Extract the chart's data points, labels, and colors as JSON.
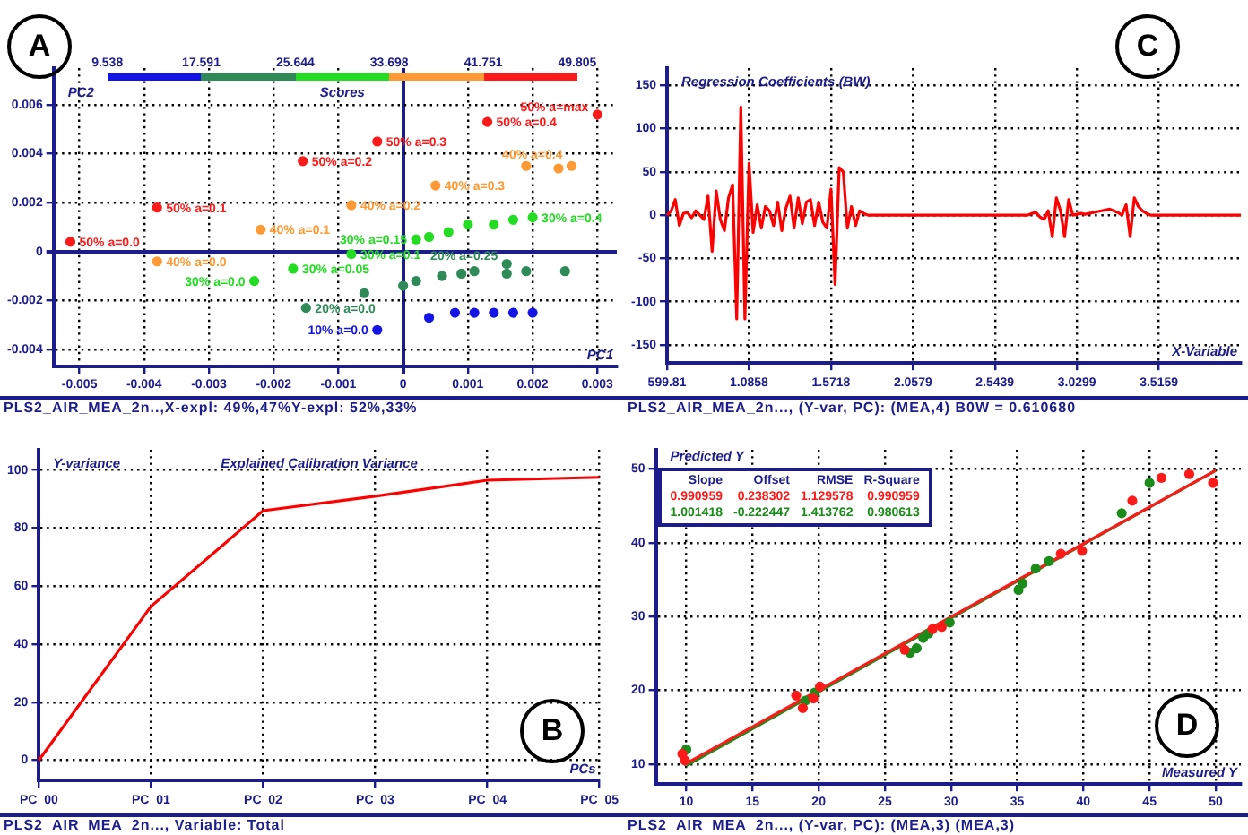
{
  "chart_data": [
    {
      "type": "scatter",
      "clabel": "Scores",
      "xlabel": "PC1",
      "ylabel": "PC2",
      "annotations": [
        "A",
        "PLS2_AIR_MEA_2n..,X-expl: 49%,47%Y-expl: 52%,33%",
        "9.538",
        "17.591",
        "25.644",
        "33.698",
        "41.751",
        "49.805",
        {
          "text": "10% a=0.0",
          "x": -0.0004,
          "y": -0.0032
        },
        {
          "text": "20% a=0.0",
          "x": -0.0015,
          "y": -0.0023
        },
        {
          "text": "20% a=0.25",
          "x": 0.0016,
          "y": -0.0005
        },
        {
          "text": "30% a=0.0",
          "x": -0.0023,
          "y": -0.0012
        },
        {
          "text": "30% a=0.05",
          "x": -0.0017,
          "y": -0.0007
        },
        {
          "text": "30% a=0.1",
          "x": -0.0008,
          "y": -0.0001
        },
        {
          "text": "30% a=0.15",
          "x": 0.0002,
          "y": 0.0005
        },
        {
          "text": "30% a=0.4",
          "x": 0.002,
          "y": 0.0014
        },
        {
          "text": "40% a=0.0",
          "x": -0.0038,
          "y": -0.0004
        },
        {
          "text": "40% a=0.1",
          "x": -0.0022,
          "y": 0.0009
        },
        {
          "text": "40% a=0.2",
          "x": -0.0008,
          "y": 0.0019
        },
        {
          "text": "40% a=0.3",
          "x": 0.0005,
          "y": 0.0027
        },
        {
          "text": "40% a=0.4",
          "x": 0.0026,
          "y": 0.0035
        },
        {
          "text": "50% a=0.0",
          "x": -0.00514,
          "y": 0.0004
        },
        {
          "text": "50% a=0.1",
          "x": -0.0038,
          "y": 0.0018
        },
        {
          "text": "50% a=0.2",
          "x": -0.00155,
          "y": 0.0037
        },
        {
          "text": "50% a=0.3",
          "x": -0.0004,
          "y": 0.0045
        },
        {
          "text": "50% a=0.4",
          "x": 0.0013,
          "y": 0.0053
        },
        {
          "text": "50% a=max",
          "x": 0.003,
          "y": 0.0056
        }
      ],
      "xlim": [
        -0.0054,
        0.0033
      ],
      "xticks": [
        -0.005,
        -0.004,
        -0.003,
        -0.002,
        -0.001,
        0,
        0.001,
        0.002,
        0.003
      ],
      "ylim": [
        -0.0047,
        0.0075
      ],
      "yticks": [
        -0.004,
        -0.002,
        0,
        0.002,
        0.004,
        0.006
      ],
      "grid": true,
      "marker": "circle",
      "series": [
        {
          "color": "#1414e6",
          "x": [
            -0.0004,
            0.0004,
            0.0008,
            0.0011,
            0.0014,
            0.0017,
            0.002
          ],
          "values": [
            -0.0032,
            -0.0027,
            -0.0025,
            -0.0025,
            -0.0025,
            -0.0025,
            -0.0025
          ]
        },
        {
          "color": "#2e8b57",
          "x": [
            -0.0015,
            -0.0006,
            0,
            0.0002,
            0.0006,
            0.0009,
            0.0011,
            0.0016,
            0.0016,
            0.0019,
            0.0025
          ],
          "values": [
            -0.0023,
            -0.0017,
            -0.0014,
            -0.0012,
            -0.001,
            -0.0009,
            -0.0008,
            -0.0005,
            -0.0009,
            -0.0008,
            -0.0008
          ]
        },
        {
          "color": "#22dd22",
          "x": [
            -0.0023,
            -0.0017,
            -0.0008,
            0.0002,
            0.0004,
            0.0007,
            0.001,
            0.0014,
            0.0017,
            0.002
          ],
          "values": [
            -0.0012,
            -0.0007,
            -0.0001,
            0.0005,
            0.0006,
            0.0008,
            0.0011,
            0.0011,
            0.0013,
            0.0014
          ]
        },
        {
          "color": "#ff9933",
          "x": [
            -0.0038,
            -0.0022,
            -0.0008,
            0.0005,
            0.0019,
            0.0024,
            0.0026
          ],
          "values": [
            -0.0004,
            0.0009,
            0.0019,
            0.0027,
            0.0035,
            0.0034,
            0.0035
          ]
        },
        {
          "color": "#ff1a1a",
          "x": [
            -0.00514,
            -0.0038,
            -0.00155,
            -0.0004,
            0.0013,
            0.003
          ],
          "values": [
            0.0004,
            0.0018,
            0.0037,
            0.0045,
            0.0053,
            0.0056
          ]
        }
      ]
    },
    {
      "type": "line",
      "ylabel": "Regression Coefficients (BW)",
      "xlabel": "X-Variable",
      "annotations": [
        "C",
        "PLS2_AIR_MEA_2n..., (Y-var, PC): (MEA,4) B0W = 0.610680"
      ],
      "categories": [
        "599.81",
        null,
        null,
        null,
        null,
        null,
        null,
        null,
        null,
        null,
        null,
        null,
        null,
        null,
        null,
        null,
        null,
        null,
        null,
        null,
        "1.0858",
        null,
        null,
        null,
        null,
        null,
        null,
        null,
        null,
        null,
        null,
        null,
        null,
        null,
        null,
        null,
        null,
        null,
        null,
        null,
        "1.5718",
        null,
        null,
        null,
        null,
        null,
        null,
        null,
        null,
        null,
        null,
        null,
        null,
        null,
        null,
        null,
        null,
        null,
        null,
        null,
        "2.0579",
        null,
        null,
        null,
        null,
        null,
        null,
        null,
        null,
        null,
        null,
        null,
        null,
        null,
        null,
        null,
        null,
        null,
        null,
        null,
        "2.5439",
        null,
        null,
        null,
        null,
        null,
        null,
        null,
        null,
        null,
        null,
        null,
        null,
        null,
        null,
        null,
        null,
        null,
        null,
        null,
        "3.0299",
        null,
        null,
        null,
        null,
        null,
        null,
        null,
        null,
        null,
        null,
        null,
        null,
        null,
        null,
        null,
        null,
        null,
        null,
        null,
        "3.5159",
        null,
        null,
        null,
        null,
        null,
        null,
        null,
        null,
        null,
        null,
        null,
        null,
        null,
        null,
        null,
        null,
        null,
        null,
        null,
        null
      ],
      "ylim": [
        -171,
        170
      ],
      "yticks": [
        -150,
        -100,
        -50,
        0,
        50,
        100,
        150
      ],
      "grid": true,
      "marker": "none",
      "series": [
        {
          "color": "#ff0000",
          "values": [
            0,
            5,
            18,
            -12,
            2,
            3,
            -3,
            5,
            0,
            -5,
            22,
            -42,
            28,
            -5,
            -18,
            20,
            35,
            -120,
            125,
            -120,
            60,
            -20,
            12,
            -15,
            10,
            5,
            -12,
            15,
            -18,
            8,
            22,
            -15,
            20,
            -10,
            15,
            18,
            -12,
            15,
            -8,
            -15,
            30,
            -80,
            55,
            50,
            -15,
            10,
            -12,
            5,
            2,
            0,
            0,
            0,
            0,
            0,
            0,
            0,
            0,
            0,
            0,
            0,
            0,
            0,
            0,
            0,
            0,
            0,
            0,
            0,
            0,
            0,
            0,
            0,
            0,
            0,
            0,
            0,
            0,
            0,
            0,
            0,
            0,
            0,
            0,
            0,
            0,
            0,
            0,
            0,
            0,
            2,
            3,
            -2,
            -5,
            5,
            -25,
            20,
            5,
            -25,
            18,
            0,
            1,
            2,
            1,
            2,
            3,
            4,
            5,
            6,
            7,
            5,
            3,
            0,
            12,
            -25,
            20,
            10,
            5,
            2,
            0,
            0,
            0,
            0,
            0,
            0,
            0,
            0,
            0,
            0,
            0,
            0,
            0,
            0,
            0,
            0,
            0,
            0,
            0,
            0,
            0,
            0,
            0
          ]
        }
      ]
    },
    {
      "type": "line",
      "title": "Explained Calibration Variance",
      "ylabel": "Y-variance",
      "xlabel": "PCs",
      "annotations": [
        "B",
        "PLS2_AIR_MEA_2n..., Variable: Total"
      ],
      "categories": [
        "PC_00",
        "PC_01",
        "PC_02",
        "PC_03",
        "PC_04",
        "PC_05"
      ],
      "ylim": [
        -7,
        107
      ],
      "yticks": [
        0,
        20,
        40,
        60,
        80,
        100
      ],
      "grid": true,
      "marker": "none",
      "series": [
        {
          "color": "#ff0000",
          "values": [
            0,
            53,
            86,
            91,
            96.5,
            97.5
          ]
        }
      ]
    },
    {
      "type": "scatter",
      "ylabel": "Predicted Y",
      "xlabel": "Measured Y",
      "annotations": [
        "D",
        "PLS2_AIR_MEA_2n..., (Y-var, PC): (MEA,3) (MEA,3)",
        "Slope Offset RMSE R-Square",
        "0.990959 0.238302 1.129578 0.990959",
        "1.001418 -0.222447 1.413762 0.980613"
      ],
      "xlim": [
        7.7,
        51.9
      ],
      "xticks": [
        10,
        15,
        20,
        25,
        30,
        35,
        40,
        45,
        50
      ],
      "ylim": [
        7.3,
        52.6
      ],
      "yticks": [
        10,
        20,
        30,
        40,
        50
      ],
      "grid": true,
      "marker": "circle",
      "series": [
        {
          "color": "#ff1a1a",
          "x": [
            9.7,
            9.9,
            18.3,
            18.8,
            19.6,
            20.1,
            26.5,
            28.6,
            29.3,
            38.3,
            39.9,
            43.7,
            45.9,
            48,
            49.8
          ],
          "values": [
            11.4,
            10.5,
            19.3,
            17.6,
            18.9,
            20.5,
            25.5,
            28.3,
            28.6,
            38.5,
            38.9,
            45.7,
            48.8,
            49.3,
            48.1
          ]
        },
        {
          "color": "#1a8c1a",
          "x": [
            10,
            19,
            19.7,
            26.9,
            27.4,
            27.9,
            28.3,
            29.9,
            35.1,
            35.4,
            36.4,
            37.4,
            42.9,
            45
          ],
          "values": [
            12,
            18.6,
            19.7,
            25.1,
            25.7,
            27.1,
            27.7,
            29.2,
            33.6,
            34.5,
            36.5,
            37.5,
            44,
            48.1
          ]
        },
        {
          "type": "line",
          "marker": "none",
          "color": "#ff1a1a",
          "x": [
            10,
            50
          ],
          "values": [
            10.1,
            49.8
          ]
        },
        {
          "type": "line",
          "marker": "none",
          "color": "#1a8c1a",
          "x": [
            10,
            50
          ],
          "values": [
            9.8,
            49.8
          ]
        }
      ]
    }
  ]
}
